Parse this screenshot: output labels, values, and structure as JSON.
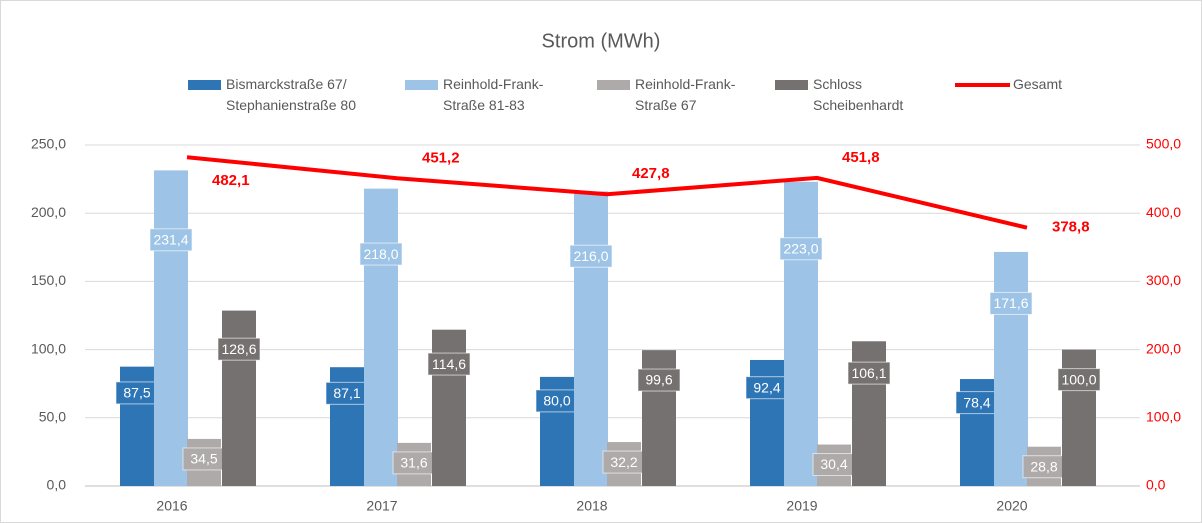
{
  "chart_data": {
    "type": "bar",
    "title": "Strom (MWh)",
    "categories": [
      "2016",
      "2017",
      "2018",
      "2019",
      "2020"
    ],
    "series": [
      {
        "name": "Bismarckstraße 67/\nStephanienstraße 80",
        "color": "#2e75b6",
        "values": [
          87.5,
          87.1,
          80.0,
          92.4,
          78.4
        ],
        "value_labels": [
          "87,5",
          "87,1",
          "80,0",
          "92,4",
          "78,4"
        ]
      },
      {
        "name": "Reinhold-Frank-\nStraße 81-83",
        "color": "#9dc3e6",
        "values": [
          231.4,
          218.0,
          216.0,
          223.0,
          171.6
        ],
        "value_labels": [
          "231,4",
          "218,0",
          "216,0",
          "223,0",
          "171,6"
        ]
      },
      {
        "name": "Reinhold-Frank-\nStraße 67",
        "color": "#aeaaaa",
        "values": [
          34.5,
          31.6,
          32.2,
          30.4,
          28.8
        ],
        "value_labels": [
          "34,5",
          "31,6",
          "32,2",
          "30,4",
          "28,8"
        ]
      },
      {
        "name": "Schloss\nScheibenhardt",
        "color": "#767171",
        "values": [
          128.6,
          114.6,
          99.6,
          106.1,
          100.0
        ],
        "value_labels": [
          "128,6",
          "114,6",
          "99,6",
          "106,1",
          "100,0"
        ]
      },
      {
        "name": "Gesamt",
        "color": "#ff0000",
        "type": "line",
        "axis": "y2",
        "values": [
          482.1,
          451.2,
          427.8,
          451.8,
          378.8
        ],
        "value_labels": [
          "482,1",
          "451,2",
          "427,8",
          "451,8",
          "378,8"
        ]
      }
    ],
    "ylim": [
      0,
      250
    ],
    "yticks": [
      {
        "value": 0,
        "label": "0,0"
      },
      {
        "value": 50,
        "label": "50,0"
      },
      {
        "value": 100,
        "label": "100,0"
      },
      {
        "value": 150,
        "label": "150,0"
      },
      {
        "value": 200,
        "label": "200,0"
      },
      {
        "value": 250,
        "label": "250,0"
      }
    ],
    "y2lim": [
      0,
      500
    ],
    "y2ticks": [
      {
        "value": 0,
        "label": "0,0"
      },
      {
        "value": 100,
        "label": "100,0"
      },
      {
        "value": 200,
        "label": "200,0"
      },
      {
        "value": 300,
        "label": "300,0"
      },
      {
        "value": 400,
        "label": "400,0"
      },
      {
        "value": 500,
        "label": "500,0"
      }
    ],
    "grid": true
  }
}
